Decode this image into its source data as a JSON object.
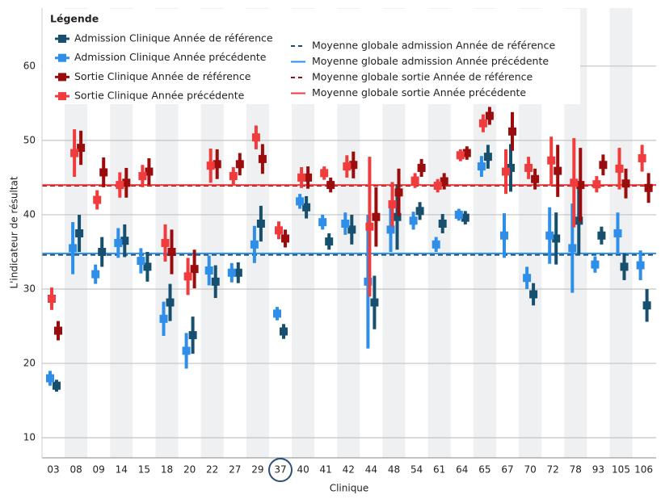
{
  "chart_data": {
    "type": "errorbar",
    "xlabel": "Clinique",
    "ylabel": "L'indicateur de résultat",
    "legend_title": "Légende",
    "categories": [
      "03",
      "08",
      "09",
      "14",
      "15",
      "18",
      "20",
      "22",
      "27",
      "29",
      "37",
      "40",
      "41",
      "42",
      "44",
      "48",
      "54",
      "61",
      "64",
      "65",
      "67",
      "70",
      "72",
      "78",
      "93",
      "105",
      "106"
    ],
    "ylim": [
      7.3,
      67.8
    ],
    "yticks": [
      10,
      20,
      30,
      40,
      50,
      60
    ],
    "grid": true,
    "legend": "upper left",
    "series": [
      {
        "name": "Admission Clinique Année de référence",
        "color": "#17506e",
        "values": [
          17,
          37.5,
          35,
          36.5,
          33,
          28.2,
          23.8,
          31,
          32.2,
          38.8,
          24.3,
          41,
          36.4,
          38,
          28.2,
          39.7,
          40.5,
          38.8,
          39.6,
          47.8,
          46.3,
          29.3,
          36.8,
          39.2,
          37.2,
          33,
          27.8
        ],
        "errors": [
          0.8,
          2.5,
          2,
          2.2,
          2,
          2.5,
          2.5,
          2.2,
          1.4,
          2.4,
          1,
          1.5,
          1.1,
          2,
          3.6,
          4.4,
          1.2,
          1.3,
          0.9,
          1.6,
          3.2,
          1.5,
          3.5,
          4.5,
          1.2,
          1.8,
          2.2
        ]
      },
      {
        "name": "Admission Clinique Année précédente",
        "color": "#2e8ee8",
        "values": [
          18,
          35.5,
          32,
          36.2,
          33.8,
          26,
          21.7,
          32.5,
          32.2,
          36,
          26.7,
          41.8,
          39,
          38.8,
          31,
          38,
          39.2,
          36,
          40,
          46.5,
          37.2,
          31.5,
          37.2,
          35.5,
          33.3,
          37.5,
          33.2
        ],
        "errors": [
          1,
          3.5,
          1.3,
          2,
          1.7,
          2.3,
          2.4,
          2,
          1.3,
          2.5,
          0.9,
          1,
          1,
          1.5,
          9,
          3,
          1.2,
          1,
          0.8,
          1.4,
          3,
          1.5,
          3.8,
          6,
          1.1,
          2.8,
          2
        ]
      },
      {
        "name": "Sortie Clinique Année de référence",
        "color": "#9b0d0d",
        "values": [
          24.4,
          49,
          45.7,
          44.3,
          45.8,
          35,
          32.7,
          46.8,
          46.8,
          47.5,
          36.8,
          45,
          44,
          46.7,
          39.7,
          43,
          46.3,
          44.5,
          48.3,
          53.3,
          51.2,
          44.8,
          45.9,
          44,
          46.7,
          44.2,
          43.6
        ],
        "errors": [
          1.3,
          2.3,
          2,
          2,
          1.8,
          3,
          2.6,
          2,
          1.5,
          2,
          1.2,
          1.5,
          1,
          1.8,
          4,
          3.2,
          1.2,
          1.1,
          0.9,
          1.2,
          2.6,
          1.4,
          3.5,
          5,
          1.4,
          2,
          2
        ]
      },
      {
        "name": "Sortie Clinique Année précédente",
        "color": "#f03c3c",
        "values": [
          28.7,
          48.3,
          42,
          44,
          45.2,
          36.2,
          31.7,
          46.6,
          45.2,
          50.4,
          37.9,
          45,
          45.6,
          46.5,
          38.4,
          41.4,
          44.6,
          43.9,
          48,
          52.3,
          45.8,
          46.3,
          47.3,
          44.3,
          44.1,
          46.2,
          47.6
        ],
        "errors": [
          1.5,
          3.2,
          1.3,
          1.7,
          1.5,
          2.5,
          2.5,
          2.3,
          1.2,
          1.6,
          1.2,
          1.4,
          0.9,
          1.5,
          9.4,
          3,
          1,
          0.9,
          0.8,
          1.2,
          3,
          1.5,
          3.2,
          6,
          1.1,
          2.8,
          1.8
        ]
      }
    ],
    "reference_lines": [
      {
        "name": "Moyenne globale admission Année de référence",
        "color": "#17506e",
        "value": 34.6,
        "style": "dashed"
      },
      {
        "name": "Moyenne globale admission Année précédente",
        "color": "#2e8ee8",
        "value": 34.8,
        "style": "solid"
      },
      {
        "name": "Moyenne globale sortie Année de référence",
        "color": "#9b0d0d",
        "value": 43.9,
        "style": "dashed"
      },
      {
        "name": "Moyenne globale sortie Année précédente",
        "color": "#f03c3c",
        "value": 44,
        "style": "solid"
      }
    ]
  }
}
